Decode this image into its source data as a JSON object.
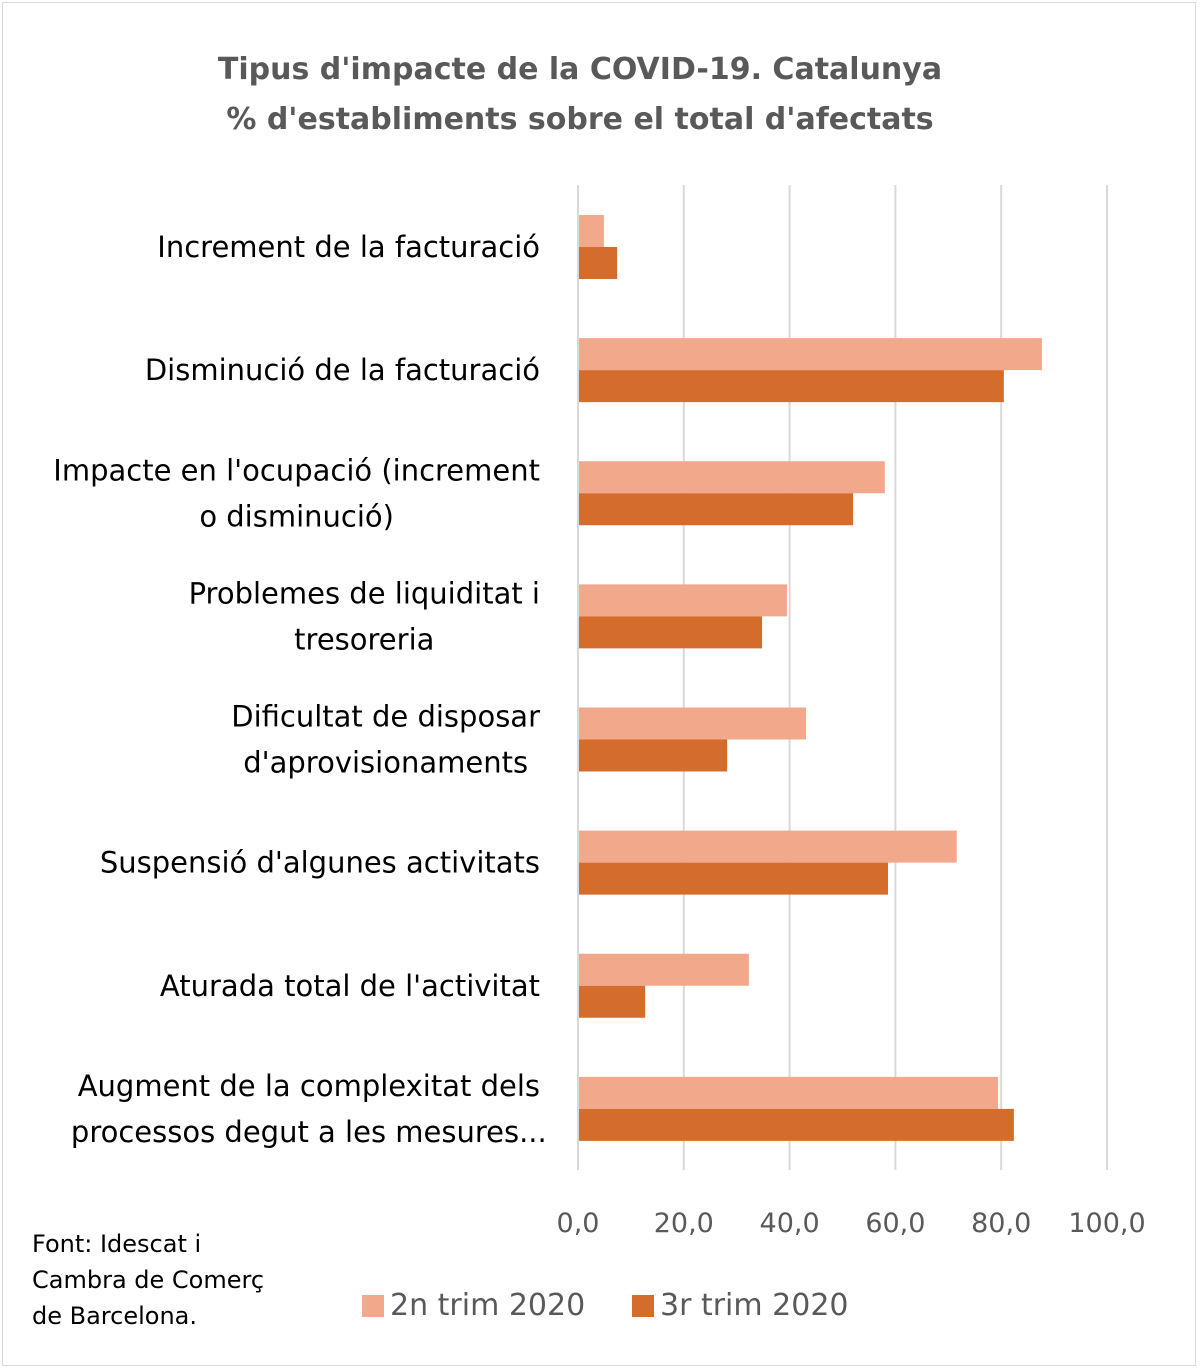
{
  "chart_data": {
    "type": "bar",
    "orientation": "horizontal",
    "title": "Tipus d'impacte de la COVID-19. Catalunya",
    "subtitle": "% d'establiments sobre el total d'afectats",
    "categories": [
      [
        "Increment de la facturació"
      ],
      [
        "Disminució de la facturació"
      ],
      [
        "Impacte en l'ocupació (increment",
        "o disminució)"
      ],
      [
        "Problemes de liquiditat i",
        "tresoreria"
      ],
      [
        "Dificultat de disposar",
        "d'aprovisionaments"
      ],
      [
        "Suspensió d'algunes activitats"
      ],
      [
        "Aturada total de l'activitat"
      ],
      [
        "Augment de la complexitat dels",
        "processos degut a les mesures..."
      ]
    ],
    "series": [
      {
        "name": "2n trim 2020",
        "color": "#F2A88B",
        "values": [
          4.9,
          87.7,
          58.0,
          39.5,
          43.1,
          71.6,
          32.3,
          79.4
        ]
      },
      {
        "name": "3r trim 2020",
        "color": "#D46D2C",
        "values": [
          7.4,
          80.5,
          52.0,
          34.8,
          28.2,
          58.6,
          12.7,
          82.4
        ]
      }
    ],
    "xlim": [
      0,
      100
    ],
    "xticks": [
      "0,0",
      "20,0",
      "40,0",
      "60,0",
      "80,0",
      "100,0"
    ],
    "grid": true,
    "legend": "bottom"
  },
  "source": [
    "Font: Idescat i",
    "Cambra de Comerç",
    "de Barcelona."
  ]
}
